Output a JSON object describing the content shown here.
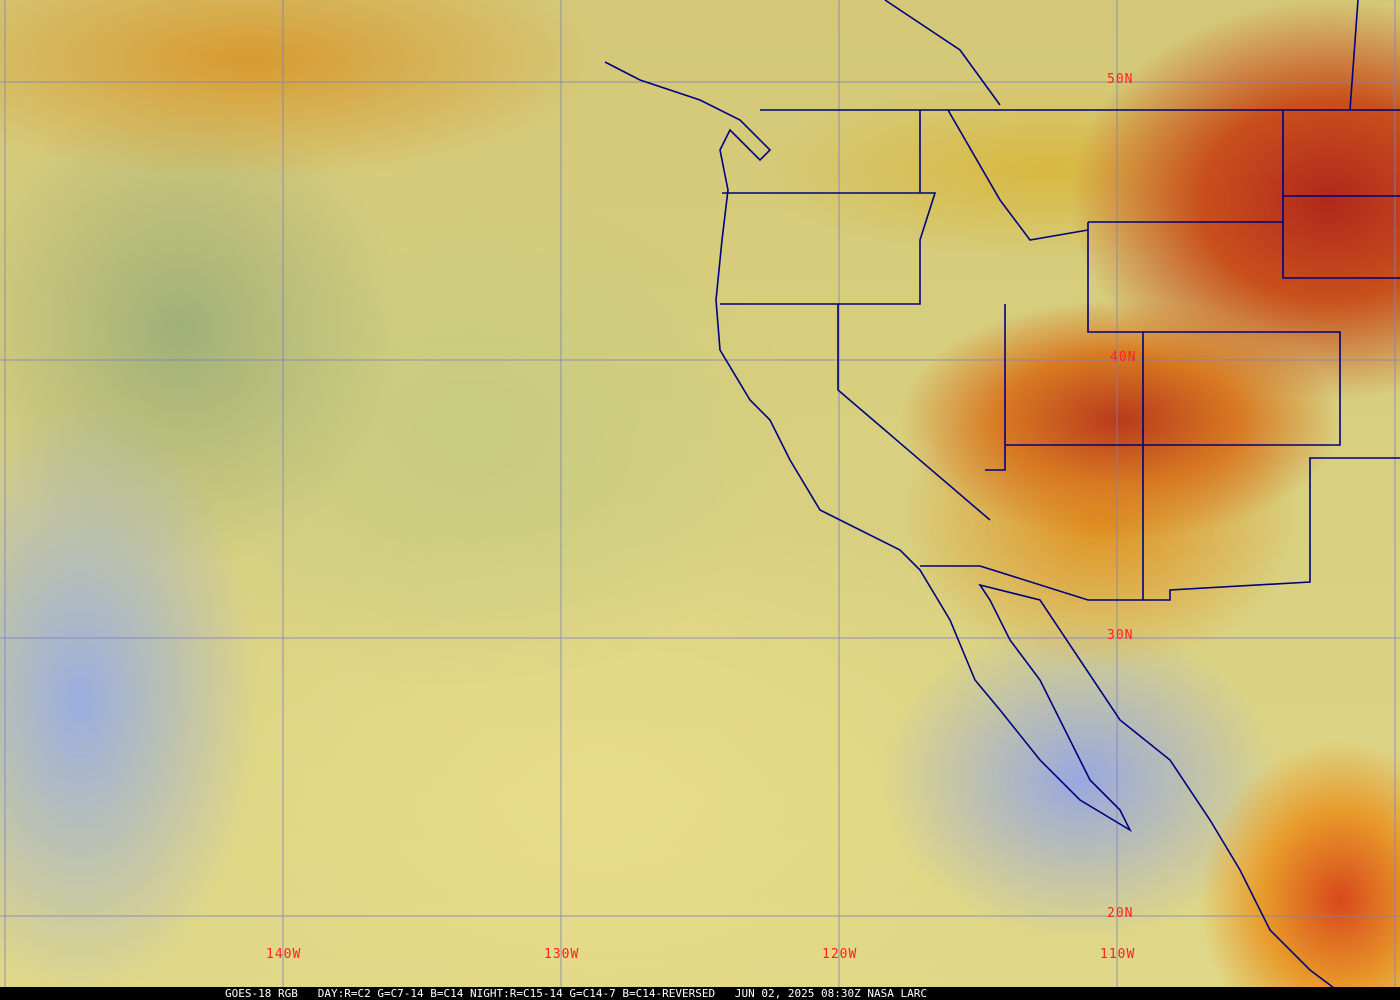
{
  "caption": "GOES-18 RGB   DAY:R=C2 G=C7-14 B=C14 NIGHT:R=C15-14 G=C14-7 B=C14-REVERSED   JUN 02, 2025 08:30Z NASA LARC",
  "latitude_labels": [
    "50N",
    "40N",
    "30N",
    "20N"
  ],
  "longitude_labels": [
    "140W",
    "130W",
    "120W",
    "110W"
  ],
  "colors": {
    "grid": "#7f80c0",
    "borders": "#000080",
    "labels": "#ff2020"
  }
}
